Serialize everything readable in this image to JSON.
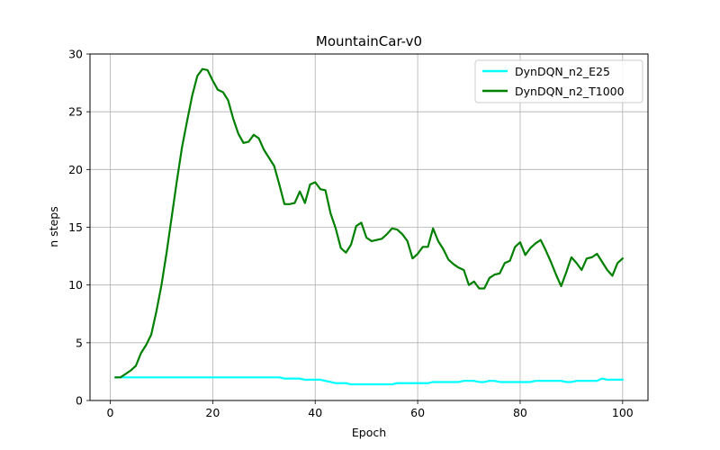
{
  "chart_data": {
    "type": "line",
    "title": "MountainCar-v0",
    "xlabel": "Epoch",
    "ylabel": "n steps",
    "xlim": [
      -3.95,
      104.95
    ],
    "ylim": [
      0,
      30
    ],
    "xticks": [
      0,
      20,
      40,
      60,
      80,
      100
    ],
    "yticks": [
      0,
      5,
      10,
      15,
      20,
      25,
      30
    ],
    "grid": true,
    "legend_position": "top-right",
    "series": [
      {
        "name": "DynDQN_n2_E25",
        "color": "#00ffff",
        "x": [
          1,
          2,
          3,
          4,
          5,
          6,
          7,
          8,
          9,
          10,
          11,
          12,
          13,
          14,
          15,
          16,
          17,
          18,
          19,
          20,
          21,
          22,
          23,
          24,
          25,
          26,
          27,
          28,
          29,
          30,
          31,
          32,
          33,
          34,
          35,
          36,
          37,
          38,
          39,
          40,
          41,
          42,
          43,
          44,
          45,
          46,
          47,
          48,
          49,
          50,
          51,
          52,
          53,
          54,
          55,
          56,
          57,
          58,
          59,
          60,
          61,
          62,
          63,
          64,
          65,
          66,
          67,
          68,
          69,
          70,
          71,
          72,
          73,
          74,
          75,
          76,
          77,
          78,
          79,
          80,
          81,
          82,
          83,
          84,
          85,
          86,
          87,
          88,
          89,
          90,
          91,
          92,
          93,
          94,
          95,
          96,
          97,
          98,
          99,
          100
        ],
        "y": [
          2.0,
          2.0,
          2.0,
          2.0,
          2.0,
          2.0,
          2.0,
          2.0,
          2.0,
          2.0,
          2.0,
          2.0,
          2.0,
          2.0,
          2.0,
          2.0,
          2.0,
          2.0,
          2.0,
          2.0,
          2.0,
          2.0,
          2.0,
          2.0,
          2.0,
          2.0,
          2.0,
          2.0,
          2.0,
          2.0,
          2.0,
          2.0,
          2.0,
          1.9,
          1.9,
          1.9,
          1.9,
          1.8,
          1.8,
          1.8,
          1.8,
          1.7,
          1.6,
          1.5,
          1.5,
          1.5,
          1.4,
          1.4,
          1.4,
          1.4,
          1.4,
          1.4,
          1.4,
          1.4,
          1.4,
          1.5,
          1.5,
          1.5,
          1.5,
          1.5,
          1.5,
          1.5,
          1.6,
          1.6,
          1.6,
          1.6,
          1.6,
          1.6,
          1.7,
          1.7,
          1.7,
          1.6,
          1.6,
          1.7,
          1.7,
          1.6,
          1.6,
          1.6,
          1.6,
          1.6,
          1.6,
          1.6,
          1.7,
          1.7,
          1.7,
          1.7,
          1.7,
          1.7,
          1.6,
          1.6,
          1.7,
          1.7,
          1.7,
          1.7,
          1.7,
          1.9,
          1.8,
          1.8,
          1.8,
          1.8
        ]
      },
      {
        "name": "DynDQN_n2_T1000",
        "color": "#008000",
        "x": [
          1,
          2,
          3,
          4,
          5,
          6,
          7,
          8,
          9,
          10,
          11,
          12,
          13,
          14,
          15,
          16,
          17,
          18,
          19,
          20,
          21,
          22,
          23,
          24,
          25,
          26,
          27,
          28,
          29,
          30,
          31,
          32,
          33,
          34,
          35,
          36,
          37,
          38,
          39,
          40,
          41,
          42,
          43,
          44,
          45,
          46,
          47,
          48,
          49,
          50,
          51,
          52,
          53,
          54,
          55,
          56,
          57,
          58,
          59,
          60,
          61,
          62,
          63,
          64,
          65,
          66,
          67,
          68,
          69,
          70,
          71,
          72,
          73,
          74,
          75,
          76,
          77,
          78,
          79,
          80,
          81,
          82,
          83,
          84,
          85,
          86,
          87,
          88,
          89,
          90,
          91,
          92,
          93,
          94,
          95,
          96,
          97,
          98,
          99,
          100
        ],
        "y": [
          2.0,
          2.0,
          2.3,
          2.6,
          3.0,
          4.1,
          4.8,
          5.7,
          7.7,
          10.0,
          12.8,
          15.9,
          19.0,
          21.9,
          24.2,
          26.4,
          28.1,
          28.7,
          28.6,
          27.7,
          26.9,
          26.7,
          26.0,
          24.4,
          23.1,
          22.3,
          22.4,
          23.0,
          22.7,
          21.7,
          21.0,
          20.3,
          18.7,
          17.0,
          17.0,
          17.1,
          18.1,
          17.1,
          18.7,
          18.9,
          18.3,
          18.2,
          16.2,
          14.9,
          13.2,
          12.8,
          13.5,
          15.1,
          15.4,
          14.1,
          13.8,
          13.9,
          14.0,
          14.4,
          14.9,
          14.8,
          14.4,
          13.8,
          12.3,
          12.7,
          13.3,
          13.3,
          14.9,
          13.8,
          13.1,
          12.2,
          11.8,
          11.5,
          11.3,
          10.0,
          10.3,
          9.7,
          9.7,
          10.6,
          10.9,
          11.0,
          11.9,
          12.1,
          13.3,
          13.7,
          12.6,
          13.2,
          13.6,
          13.9,
          13.0,
          12.0,
          10.9,
          9.9,
          11.1,
          12.4,
          11.9,
          11.3,
          12.3,
          12.4,
          12.7,
          12.0,
          11.3,
          10.8,
          11.9,
          12.3
        ]
      }
    ]
  }
}
